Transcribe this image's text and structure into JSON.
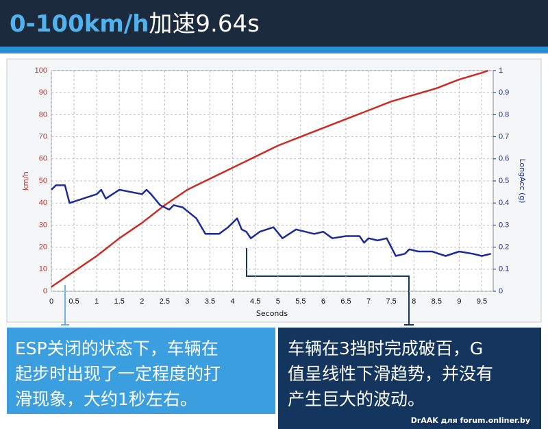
{
  "chart_data": {
    "type": "line",
    "title": [
      "0-100km/h",
      "加速9.64s"
    ],
    "y_label": "km/h",
    "y2_label": "LongAcc (g)",
    "x_label": "Seconds",
    "xlim": [
      0,
      9.75
    ],
    "xticks": [
      0,
      0.5,
      1,
      1.5,
      2,
      2.5,
      3,
      3.5,
      4,
      4.5,
      5,
      5.5,
      6,
      6.5,
      7,
      7.5,
      8,
      8.5,
      9,
      9.5
    ],
    "ylim": [
      0,
      100
    ],
    "yticks": [
      0,
      10,
      20,
      30,
      40,
      50,
      60,
      70,
      80,
      90,
      100
    ],
    "y2lim": [
      0,
      1
    ],
    "y2ticks": [
      0,
      0.1,
      0.2,
      0.3,
      0.4,
      0.5,
      0.6,
      0.7,
      0.8,
      0.9,
      1
    ],
    "grid": true,
    "series": [
      {
        "color": "#cc2a22",
        "x": [
          0,
          0.5,
          1,
          1.5,
          2,
          2.5,
          3,
          3.5,
          4,
          4.5,
          5,
          5.5,
          6,
          6.5,
          7,
          7.5,
          8,
          8.5,
          9,
          9.5,
          9.64
        ],
        "values": [
          2,
          9,
          16,
          24,
          31,
          39,
          46,
          51,
          56,
          61,
          66,
          70,
          74,
          78,
          82,
          86,
          89,
          92,
          96,
          99,
          100
        ]
      },
      {
        "color": "#1a2a9a",
        "axis": "y2",
        "x": [
          0,
          0.1,
          0.3,
          0.4,
          0.7,
          1,
          1.1,
          1.2,
          1.5,
          2,
          2.1,
          2.2,
          2.4,
          2.6,
          2.7,
          2.9,
          3.2,
          3.4,
          3.7,
          3.9,
          4.1,
          4.2,
          4.3,
          4.4,
          4.6,
          4.9,
          5.1,
          5.4,
          5.8,
          6,
          6.2,
          6.5,
          6.8,
          6.9,
          7,
          7.2,
          7.4,
          7.6,
          7.8,
          7.9,
          8.1,
          8.4,
          8.7,
          9,
          9.3,
          9.5,
          9.7
        ],
        "values": [
          0.46,
          0.48,
          0.48,
          0.4,
          0.42,
          0.44,
          0.46,
          0.42,
          0.46,
          0.44,
          0.46,
          0.44,
          0.39,
          0.37,
          0.39,
          0.38,
          0.33,
          0.26,
          0.26,
          0.29,
          0.33,
          0.28,
          0.27,
          0.24,
          0.27,
          0.29,
          0.24,
          0.28,
          0.26,
          0.27,
          0.24,
          0.25,
          0.25,
          0.22,
          0.24,
          0.23,
          0.24,
          0.16,
          0.17,
          0.19,
          0.18,
          0.18,
          0.16,
          0.18,
          0.17,
          0.16,
          0.17
        ]
      }
    ],
    "annotations": [
      [
        "ESP关闭的状态下，车辆在",
        "起步时出现了一定程度的打",
        "滑现象，大约1秒左右。"
      ],
      [
        "车辆在3挡时完成破百，G",
        "值呈线性下滑趋势，并没有",
        "产生巨大的波动。"
      ]
    ],
    "watermark": "DrAAK для forum.onliner.by"
  }
}
